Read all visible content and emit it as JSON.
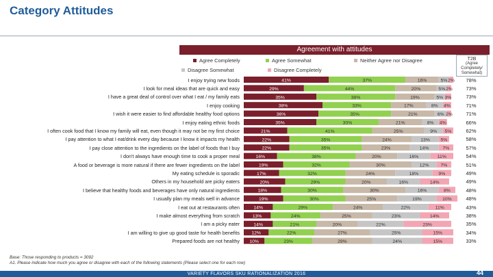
{
  "slide": {
    "title": "Category Attitudes",
    "page_number": "44",
    "footer": "VARIETY FLAVORS SKU RATIONALIZATION 2016",
    "base_note": "Base: Those responding to products = 3092",
    "question_note": "A1. Please indicate how much you agree or disagree with each of the following statements (Please select one for each row)"
  },
  "chart_data": {
    "type": "bar",
    "orientation": "horizontal",
    "stacked": true,
    "title": "Agreement with attitudes",
    "t2b_header": "T2B",
    "t2b_subheader": "(Agree Completely/ Somewhat)",
    "legend_position": "top",
    "categories": [
      "I enjoy trying new foods",
      "I look for meal ideas that are quick and easy",
      "I have a great deal of control over what I eat / my family eats",
      "I enjoy cooking",
      "I wish it were easier to find affordable healthy food options",
      "I enjoy eating ethnic foods",
      "I often cook food that I know my family will eat, even though it may not be my first choice",
      "I pay attention to what I eat/drink every day because I know it impacts my health",
      "I pay close attention to the ingredients on the label of foods that I buy",
      "I don't always have enough time to cook a proper meal",
      "A food or beverage is more natural if there are fewer ingredients on the label",
      "My eating schedule is sporadic",
      "Others in my household are picky eaters",
      "I believe that healthy foods and beverages have only natural ingredients",
      "I usually plan my meals well in advance",
      "I eat out at restaurants often",
      "I make almost everything from scratch",
      "I am a picky eater",
      "I am willing to give up good taste for health benefits",
      "Prepared foods are not healthy"
    ],
    "series": [
      {
        "name": "Agree Completely",
        "color": "#7a1f2b",
        "values": [
          41,
          29,
          35,
          38,
          36,
          35,
          21,
          22,
          22,
          16,
          19,
          17,
          20,
          18,
          19,
          14,
          13,
          14,
          12,
          10
        ]
      },
      {
        "name": "Agree Somewhat",
        "color": "#92d050",
        "values": [
          37,
          44,
          38,
          33,
          35,
          30,
          41,
          35,
          35,
          38,
          32,
          32,
          29,
          30,
          30,
          29,
          24,
          21,
          22,
          23
        ]
      },
      {
        "name": "Neither Agree nor Disagree",
        "color": "#c8b8a8",
        "values": [
          16,
          20,
          19,
          17,
          21,
          21,
          25,
          24,
          23,
          20,
          30,
          24,
          20,
          30,
          25,
          24,
          25,
          20,
          27,
          29
        ]
      },
      {
        "name": "Disagree Somewhat",
        "color": "#c6c6c6",
        "values": [
          5,
          5,
          5,
          8,
          6,
          8,
          9,
          13,
          14,
          16,
          12,
          18,
          16,
          16,
          19,
          22,
          23,
          22,
          25,
          24
        ]
      },
      {
        "name": "Disagree Completely",
        "color": "#f2a6b3",
        "values": [
          2,
          2,
          3,
          4,
          2,
          4,
          5,
          5,
          7,
          11,
          7,
          9,
          14,
          8,
          10,
          11,
          14,
          23,
          15,
          15
        ]
      }
    ],
    "t2b": [
      "78%",
      "73%",
      "73%",
      "71%",
      "71%",
      "66%",
      "62%",
      "58%",
      "57%",
      "54%",
      "51%",
      "49%",
      "49%",
      "48%",
      "48%",
      "43%",
      "38%",
      "35%",
      "34%",
      "33%"
    ],
    "xlim": [
      0,
      101
    ]
  }
}
